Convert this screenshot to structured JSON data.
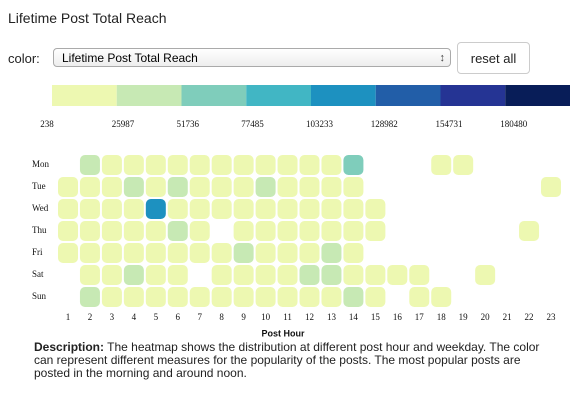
{
  "chart_data": {
    "type": "heatmap",
    "title": "Lifetime Post Total Reach",
    "ui": {
      "color_label": "color:",
      "select_value": "Lifetime Post Total Reach",
      "reset": "reset all"
    },
    "x_label": "Post Hour",
    "x": [
      1,
      2,
      3,
      4,
      5,
      6,
      7,
      8,
      9,
      10,
      11,
      12,
      13,
      14,
      15,
      16,
      17,
      18,
      19,
      20,
      21,
      22,
      23
    ],
    "color_scale": {
      "thresholds": [
        238,
        25987,
        51736,
        77485,
        103233,
        128982,
        154731,
        180480
      ],
      "colors": [
        "#edf8b1",
        "#c7e9b4",
        "#7fcdbb",
        "#41b6c4",
        "#1d91c0",
        "#225ea8",
        "#253494",
        "#081d58"
      ]
    },
    "series": [
      {
        "name": "Mon",
        "values": [
          null,
          34000,
          14000,
          12000,
          15000,
          13000,
          11000,
          9000,
          12000,
          10000,
          13000,
          16000,
          18000,
          62000,
          null,
          null,
          null,
          8000,
          9000,
          null,
          null,
          null,
          null
        ]
      },
      {
        "name": "Tue",
        "values": [
          6000,
          11000,
          13000,
          33000,
          15000,
          31000,
          14000,
          12000,
          10000,
          30000,
          12000,
          14000,
          16000,
          15000,
          null,
          null,
          null,
          null,
          null,
          null,
          null,
          null,
          7000
        ]
      },
      {
        "name": "Wed",
        "values": [
          7000,
          10000,
          12000,
          14000,
          112000,
          18000,
          13000,
          11000,
          10000,
          12000,
          14000,
          15000,
          13000,
          17000,
          8000,
          null,
          null,
          null,
          null,
          null,
          null,
          null,
          null
        ]
      },
      {
        "name": "Thu",
        "values": [
          6000,
          9000,
          11000,
          13000,
          16000,
          32000,
          12000,
          null,
          10000,
          11000,
          13000,
          14000,
          12000,
          15000,
          7000,
          null,
          null,
          null,
          null,
          null,
          null,
          5000,
          null
        ]
      },
      {
        "name": "Fri",
        "values": [
          5000,
          8000,
          10000,
          12000,
          14000,
          13000,
          11000,
          9000,
          28000,
          12000,
          13000,
          15000,
          36000,
          14000,
          null,
          null,
          null,
          null,
          null,
          null,
          null,
          null,
          null
        ]
      },
      {
        "name": "Sat",
        "values": [
          null,
          9000,
          11000,
          30000,
          13000,
          12000,
          null,
          10000,
          11000,
          12000,
          14000,
          33000,
          34000,
          15000,
          9000,
          8000,
          7000,
          null,
          null,
          6000,
          null,
          null,
          null
        ]
      },
      {
        "name": "Sun",
        "values": [
          null,
          31000,
          12000,
          14000,
          13000,
          12000,
          11000,
          10000,
          12000,
          13000,
          14000,
          15000,
          13000,
          29000,
          8000,
          null,
          7000,
          6000,
          null,
          null,
          null,
          null,
          null
        ]
      }
    ],
    "description": {
      "label": "Description:",
      "text": "The heatmap shows the distribution at different post hour and weekday. The color can represent different measures for the popularity of the posts. The most popular posts are posted in the morning and around noon."
    }
  }
}
